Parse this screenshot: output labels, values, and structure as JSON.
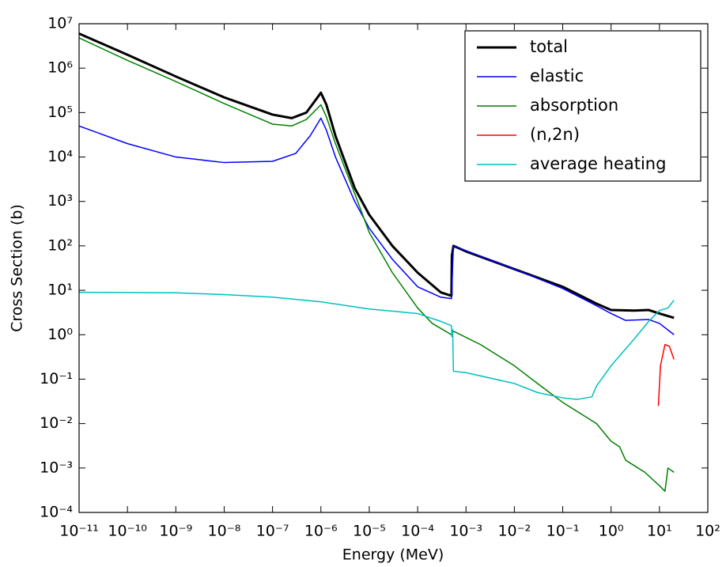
{
  "chart_data": {
    "type": "line",
    "xscale": "log",
    "yscale": "log",
    "xlabel": "Energy (MeV)",
    "ylabel": "Cross Section (b)",
    "xlim": [
      1e-11,
      100
    ],
    "ylim": [
      0.0001,
      10000000
    ],
    "xticks": [
      {
        "value": 1e-11,
        "label": "10⁻¹¹"
      },
      {
        "value": 1e-10,
        "label": "10⁻¹⁰"
      },
      {
        "value": 1e-09,
        "label": "10⁻⁹"
      },
      {
        "value": 1e-08,
        "label": "10⁻⁸"
      },
      {
        "value": 1e-07,
        "label": "10⁻⁷"
      },
      {
        "value": 1e-06,
        "label": "10⁻⁶"
      },
      {
        "value": 1e-05,
        "label": "10⁻⁵"
      },
      {
        "value": 0.0001,
        "label": "10⁻⁴"
      },
      {
        "value": 0.001,
        "label": "10⁻³"
      },
      {
        "value": 0.01,
        "label": "10⁻²"
      },
      {
        "value": 0.1,
        "label": "10⁻¹"
      },
      {
        "value": 1,
        "label": "10⁰"
      },
      {
        "value": 10,
        "label": "10¹"
      },
      {
        "value": 100,
        "label": "10²"
      }
    ],
    "yticks": [
      {
        "value": 0.0001,
        "label": "10⁻⁴"
      },
      {
        "value": 0.001,
        "label": "10⁻³"
      },
      {
        "value": 0.01,
        "label": "10⁻²"
      },
      {
        "value": 0.1,
        "label": "10⁻¹"
      },
      {
        "value": 1,
        "label": "10⁰"
      },
      {
        "value": 10,
        "label": "10¹"
      },
      {
        "value": 100,
        "label": "10²"
      },
      {
        "value": 1000,
        "label": "10³"
      },
      {
        "value": 10000,
        "label": "10⁴"
      },
      {
        "value": 100000,
        "label": "10⁵"
      },
      {
        "value": 1000000,
        "label": "10⁶"
      },
      {
        "value": 10000000,
        "label": "10⁷"
      }
    ],
    "legend": "upper right",
    "series": [
      {
        "name": "total",
        "color": "#000000",
        "linewidth": 3,
        "x": [
          1e-11,
          1e-10,
          1e-09,
          1e-08,
          1e-07,
          2.5e-07,
          5e-07,
          8e-07,
          1e-06,
          1.3e-06,
          2e-06,
          5e-06,
          1e-05,
          3e-05,
          0.0001,
          0.0003,
          0.0005,
          0.00051,
          0.00055,
          0.001,
          0.01,
          0.1,
          0.5,
          1,
          3,
          6,
          10,
          20
        ],
        "values": [
          6000000,
          2000000,
          650000,
          220000,
          90000,
          75000,
          100000,
          200000,
          280000,
          150000,
          30000,
          2000,
          500,
          100,
          25,
          9,
          7.5,
          60,
          100,
          75,
          30,
          12,
          5,
          3.6,
          3.5,
          3.6,
          3,
          2.4
        ]
      },
      {
        "name": "elastic",
        "color": "#0000ff",
        "linewidth": 1.5,
        "x": [
          1e-11,
          1e-10,
          1e-09,
          1e-08,
          1e-07,
          3e-07,
          6e-07,
          1e-06,
          1.3e-06,
          2e-06,
          5e-06,
          1e-05,
          3e-05,
          0.0001,
          0.0003,
          0.0005,
          0.00055,
          0.01,
          0.1,
          0.5,
          1,
          2,
          6,
          10,
          20
        ],
        "values": [
          50000,
          20000,
          10000,
          7500,
          8000,
          12000,
          30000,
          75000,
          40000,
          10000,
          1000,
          250,
          50,
          12,
          7,
          6.5,
          100,
          30,
          11,
          4.5,
          3,
          2.1,
          2.2,
          1.8,
          1
        ]
      },
      {
        "name": "absorption",
        "color": "#008000",
        "linewidth": 1.5,
        "x": [
          1e-11,
          1e-10,
          1e-09,
          1e-08,
          1e-07,
          2.5e-07,
          5e-07,
          1e-06,
          1.3e-06,
          2e-06,
          5e-06,
          1e-05,
          3e-05,
          0.0001,
          0.0002,
          0.0005,
          0.00055,
          0.002,
          0.01,
          0.03,
          0.1,
          0.5,
          1,
          1.5,
          2,
          5,
          10,
          13,
          15,
          20
        ],
        "values": [
          4800000,
          1500000,
          500000,
          160000,
          55000,
          50000,
          70000,
          150000,
          80000,
          20000,
          1500,
          200,
          25,
          4,
          1.8,
          1,
          1.2,
          0.6,
          0.2,
          0.08,
          0.03,
          0.01,
          0.004,
          0.003,
          0.0015,
          0.0008,
          0.0004,
          0.0003,
          0.001,
          0.0008
        ]
      },
      {
        "name": "(n,2n)",
        "color": "#ff0000",
        "linewidth": 1.5,
        "x": [
          9.5,
          10.5,
          13,
          16,
          20
        ],
        "values": [
          0.025,
          0.2,
          0.6,
          0.55,
          0.28
        ]
      },
      {
        "name": "average heating",
        "color": "#00bfbf",
        "linewidth": 1.5,
        "x": [
          1e-11,
          1e-09,
          1e-08,
          1e-07,
          1e-06,
          1e-05,
          0.0001,
          0.0003,
          0.0005,
          0.00051,
          0.00053,
          0.00055,
          0.001,
          0.01,
          0.03,
          0.1,
          0.2,
          0.4,
          0.5,
          1,
          3,
          6,
          10,
          15,
          20
        ],
        "values": [
          9,
          8.8,
          8,
          7,
          5.5,
          3.8,
          3,
          2,
          1.6,
          0.9,
          1.3,
          0.15,
          0.14,
          0.08,
          0.05,
          0.038,
          0.035,
          0.04,
          0.07,
          0.2,
          0.8,
          2,
          3.5,
          4,
          6
        ]
      }
    ]
  }
}
